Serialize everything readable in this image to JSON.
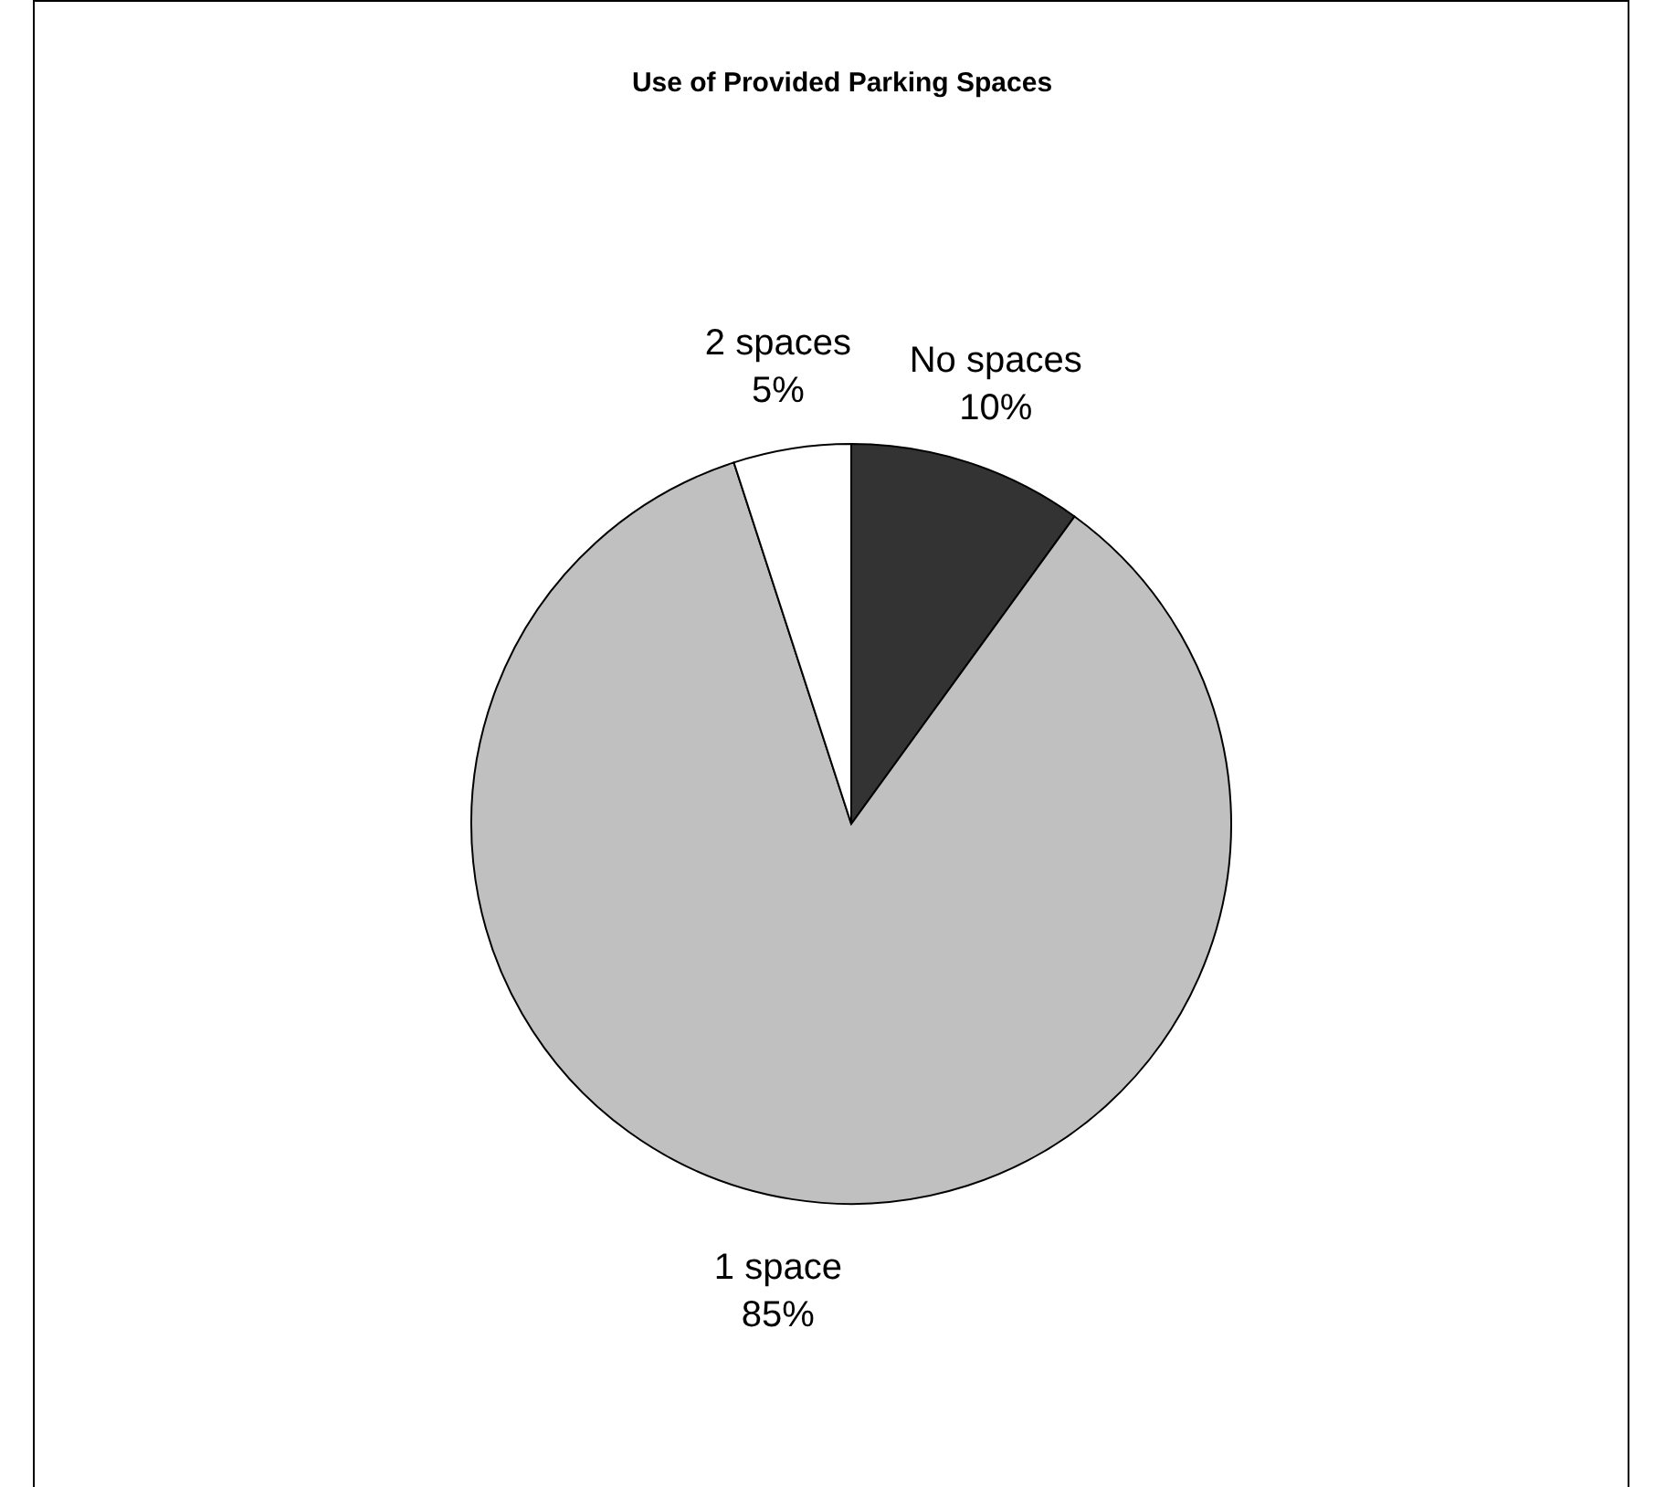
{
  "chart_data": {
    "type": "pie",
    "title": "Use of Provided Parking Spaces",
    "categories": [
      "No spaces",
      "1 space",
      "2 spaces"
    ],
    "values": [
      10,
      85,
      5
    ],
    "value_labels": [
      "10%",
      "85%",
      "5%"
    ],
    "colors": [
      "#333333",
      "#c0c0c0",
      "#ffffff"
    ],
    "legend": false
  }
}
